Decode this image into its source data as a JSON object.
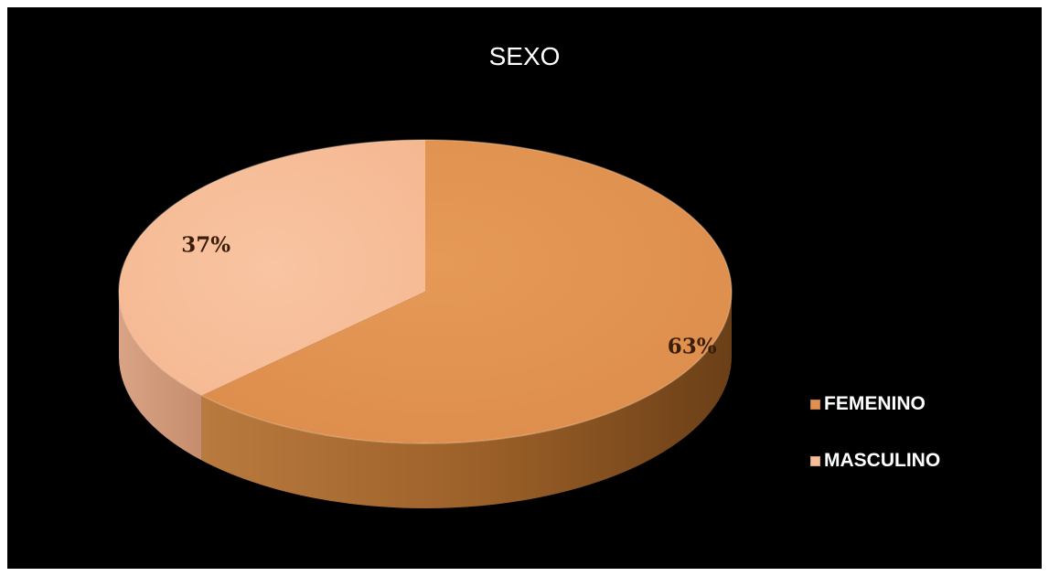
{
  "chart_data": {
    "type": "pie",
    "title": "SEXO",
    "slices": [
      {
        "name": "FEMENINO",
        "value": 63,
        "label": "63%",
        "color": "#e09150"
      },
      {
        "name": "MASCULINO",
        "value": 37,
        "label": "37%",
        "color": "#f7bc98"
      }
    ],
    "legend_position": "right",
    "background": "#000000",
    "style": "3d"
  }
}
